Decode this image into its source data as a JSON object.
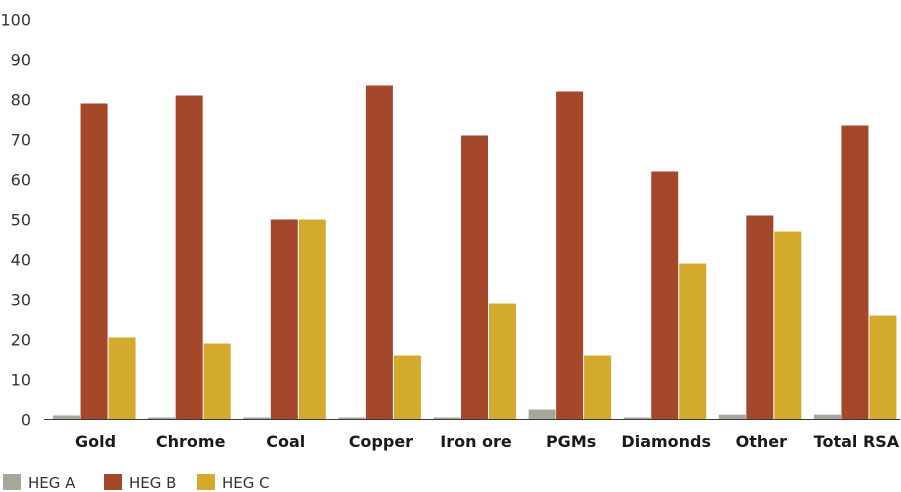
{
  "chart_data": {
    "type": "bar",
    "title": "",
    "xlabel": "",
    "ylabel": "",
    "ylim": [
      0,
      100
    ],
    "yticks": [
      0,
      10,
      20,
      30,
      40,
      50,
      60,
      70,
      80,
      90,
      100
    ],
    "grid": false,
    "legend_position": "bottom-left",
    "categories": [
      "Gold",
      "Chrome",
      "Coal",
      "Copper",
      "Iron ore",
      "PGMs",
      "Diamonds",
      "Other",
      "Total RSA"
    ],
    "series": [
      {
        "name": "HEG A",
        "color": "#a8a69b",
        "values": [
          1,
          0.5,
          0.5,
          0.5,
          0.5,
          2.5,
          0.5,
          1.2,
          1.2
        ]
      },
      {
        "name": "HEG B",
        "color": "#a4472a",
        "values": [
          79,
          81,
          50,
          83.5,
          71,
          82,
          62,
          51,
          73.5
        ]
      },
      {
        "name": "HEG C",
        "color": "#d4aa2c",
        "values": [
          20.5,
          19,
          50,
          16,
          29,
          16,
          39,
          47,
          26
        ]
      }
    ]
  }
}
